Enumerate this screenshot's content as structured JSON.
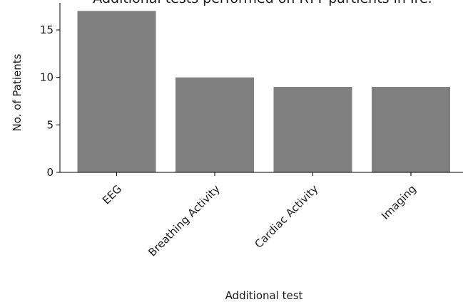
{
  "chart_data": {
    "type": "bar",
    "title": "Additional tests performed on RTT partients in Ire.",
    "xlabel": "Additional test",
    "ylabel": "No. of Patients",
    "categories": [
      "EEG",
      "Breathing Activity",
      "Cardiac Activity",
      "Imaging"
    ],
    "values": [
      17,
      10,
      9,
      9
    ],
    "ylim": [
      0,
      17.85
    ],
    "yticks": [
      0,
      5,
      10,
      15
    ],
    "bar_color": "#808080",
    "grid": false,
    "legend": "none"
  }
}
